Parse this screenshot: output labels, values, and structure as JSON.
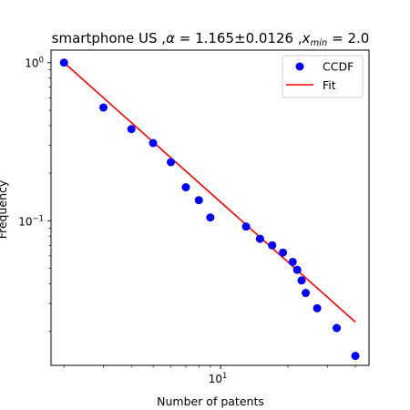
{
  "chart_data": {
    "type": "scatter",
    "title": "smartphone US ,α = 1.165±0.0126 ,x_min = 2.0",
    "title_parts": {
      "prefix": "smartphone US ,",
      "alpha_symbol": "α",
      "alpha_value": " = 1.165±0.0126 ,",
      "xmin_symbol": "x",
      "xmin_subscript": "min",
      "xmin_value": " = 2.0"
    },
    "xlabel": "Number of patents",
    "ylabel": "Frequency",
    "xscale": "log",
    "yscale": "log",
    "xlim": [
      1.75,
      46
    ],
    "ylim": [
      0.0122,
      1.2
    ],
    "x_ticks": [
      {
        "value": 10,
        "base": "10",
        "exp": "1"
      }
    ],
    "y_ticks": [
      {
        "value": 1,
        "base": "10",
        "exp": "0"
      },
      {
        "value": 0.1,
        "base": "10",
        "exp": "−1"
      }
    ],
    "grid": false,
    "legend_position": "top-right",
    "series": [
      {
        "name": "CCDF",
        "style": "markers",
        "color": "#0000ff",
        "x": [
          2,
          3,
          4,
          5,
          6,
          7,
          8,
          9,
          13,
          15,
          17,
          19,
          21,
          22,
          23,
          24,
          27,
          33,
          40
        ],
        "y": [
          1.0,
          0.52,
          0.38,
          0.31,
          0.235,
          0.163,
          0.135,
          0.105,
          0.092,
          0.077,
          0.07,
          0.063,
          0.055,
          0.049,
          0.042,
          0.035,
          0.028,
          0.021,
          0.014
        ]
      },
      {
        "name": "Fit",
        "style": "line",
        "color": "#ff0000",
        "x": [
          2,
          40
        ],
        "y": [
          1.0,
          0.0229
        ]
      }
    ]
  }
}
